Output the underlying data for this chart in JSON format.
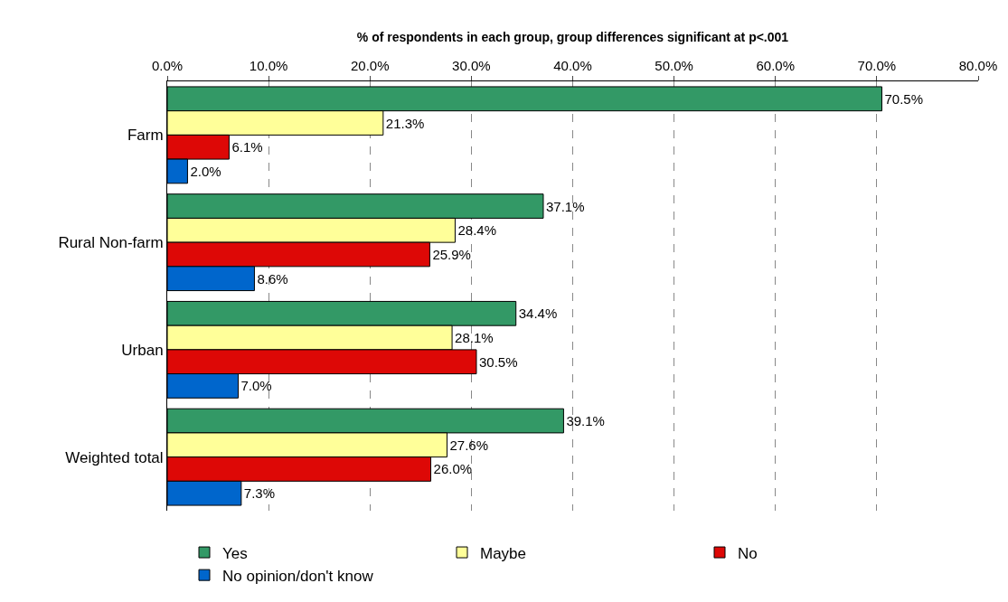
{
  "chart_data": {
    "type": "bar",
    "orientation": "horizontal",
    "xlabel": "% of respondents in each group, group differences significant at p<.001",
    "categories": [
      "Farm",
      "Rural Non-farm",
      "Urban",
      "Weighted total"
    ],
    "series": [
      {
        "name": "Yes",
        "color": "#339966",
        "values": [
          70.5,
          37.1,
          34.4,
          39.1
        ],
        "value_labels": [
          "70.5%",
          "37.1%",
          "34.4%",
          "39.1%"
        ]
      },
      {
        "name": "Maybe",
        "color": "#ffff99",
        "values": [
          21.3,
          28.4,
          28.1,
          27.6
        ],
        "value_labels": [
          "21.3%",
          "28.4%",
          "28.1%",
          "27.6%"
        ]
      },
      {
        "name": "No",
        "color": "#dd0806",
        "values": [
          6.1,
          25.9,
          30.5,
          26.0
        ],
        "value_labels": [
          "6.1%",
          "25.9%",
          "30.5%",
          "26.0%"
        ]
      },
      {
        "name": "No opinion/don't know",
        "color": "#0066cc",
        "values": [
          2.0,
          8.6,
          7.0,
          7.3
        ],
        "value_labels": [
          "2.0%",
          "8.6%",
          "7.0%",
          "7.3%"
        ]
      }
    ],
    "xlim": [
      0,
      80
    ],
    "xticks": [
      {
        "value": 0,
        "label": "0.0%"
      },
      {
        "value": 10,
        "label": "10.0%"
      },
      {
        "value": 20,
        "label": "20.0%"
      },
      {
        "value": 30,
        "label": "30.0%"
      },
      {
        "value": 40,
        "label": "40.0%"
      },
      {
        "value": 50,
        "label": "50.0%"
      },
      {
        "value": 60,
        "label": "60.0%"
      },
      {
        "value": 70,
        "label": "70.0%"
      },
      {
        "value": 80,
        "label": "80.0%"
      }
    ],
    "grid": "x",
    "legend": "bottom"
  }
}
